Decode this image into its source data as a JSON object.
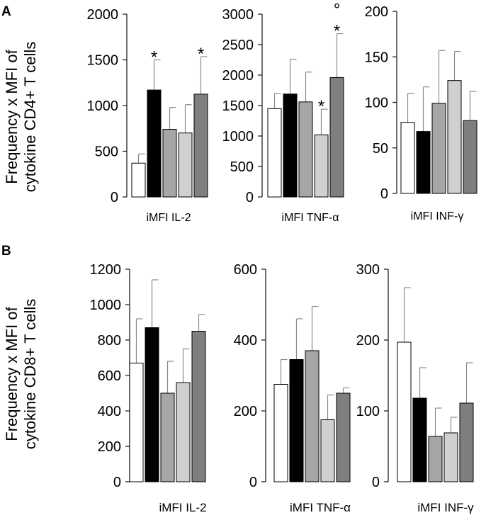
{
  "figure": {
    "panel_a_letter": "A",
    "panel_b_letter": "B",
    "panel_a_ylabel_line1": "Frequency x MFI of",
    "panel_a_ylabel_line2": "cytokine CD4+ T cells",
    "panel_b_ylabel_line1": "Frequency x MFI of",
    "panel_b_ylabel_line2": "cytokine CD8+ T cells"
  },
  "series_colors": [
    "#ffffff",
    "#000000",
    "#a6a6a6",
    "#d0d0d0",
    "#7f7f7f"
  ],
  "chart_data": [
    {
      "id": "a-il2",
      "type": "bar",
      "panel": "A",
      "title": "",
      "xlabel": "iMFI IL-2",
      "ylabel": "Frequency x MFI of cytokine CD4+ T cells",
      "ylim": [
        0,
        2000
      ],
      "yticks": [
        0,
        500,
        1000,
        1500,
        2000
      ],
      "values": [
        370,
        1170,
        740,
        700,
        1125
      ],
      "errors": [
        100,
        330,
        240,
        310,
        410
      ],
      "annotations": [
        "",
        "*",
        "",
        "",
        "*"
      ]
    },
    {
      "id": "a-tnf",
      "type": "bar",
      "panel": "A",
      "title": "",
      "xlabel": "iMFI TNF-α",
      "ylabel": "Frequency x MFI of cytokine CD4+ T cells",
      "ylim": [
        0,
        3000
      ],
      "yticks": [
        0,
        500,
        1000,
        1500,
        2000,
        2500,
        3000
      ],
      "values": [
        1450,
        1690,
        1560,
        1020,
        1960
      ],
      "errors": [
        250,
        570,
        490,
        420,
        720
      ],
      "annotations": [
        "",
        "",
        "",
        "*",
        "°*"
      ]
    },
    {
      "id": "a-inf",
      "type": "bar",
      "panel": "A",
      "title": "",
      "xlabel": "iMFI INF-γ",
      "ylabel": "Frequency x MFI of cytokine CD4+ T cells",
      "ylim": [
        0,
        200
      ],
      "yticks": [
        0,
        50,
        100,
        150,
        200
      ],
      "values": [
        78,
        68,
        99,
        124,
        80
      ],
      "errors": [
        32,
        49,
        58,
        32,
        32
      ],
      "annotations": [
        "",
        "",
        "",
        "",
        ""
      ]
    },
    {
      "id": "b-il2",
      "type": "bar",
      "panel": "B",
      "title": "",
      "xlabel": "iMFI IL-2",
      "ylabel": "Frequency x MFI of cytokine CD8+ T cells",
      "ylim": [
        0,
        1200
      ],
      "yticks": [
        0,
        200,
        400,
        600,
        800,
        1000,
        1200
      ],
      "values": [
        670,
        870,
        500,
        560,
        850
      ],
      "errors": [
        250,
        270,
        180,
        190,
        95
      ],
      "annotations": [
        "",
        "",
        "",
        "",
        ""
      ]
    },
    {
      "id": "b-tnf",
      "type": "bar",
      "panel": "B",
      "title": "",
      "xlabel": "iMFI TNF-α",
      "ylabel": "Frequency x MFI of cytokine CD8+ T cells",
      "ylim": [
        0,
        600
      ],
      "yticks": [
        0,
        200,
        400,
        600
      ],
      "values": [
        275,
        345,
        370,
        175,
        250
      ],
      "errors": [
        70,
        115,
        125,
        70,
        15
      ],
      "annotations": [
        "",
        "",
        "",
        "",
        ""
      ]
    },
    {
      "id": "b-inf",
      "type": "bar",
      "panel": "B",
      "title": "",
      "xlabel": "iMFI INF-γ",
      "ylabel": "Frequency x MFI of cytokine CD8+ T cells",
      "ylim": [
        0,
        300
      ],
      "yticks": [
        0,
        100,
        200,
        300
      ],
      "values": [
        197,
        118,
        64,
        69,
        111
      ],
      "errors": [
        77,
        43,
        40,
        22,
        57
      ],
      "annotations": [
        "",
        "",
        "",
        "",
        ""
      ]
    }
  ]
}
